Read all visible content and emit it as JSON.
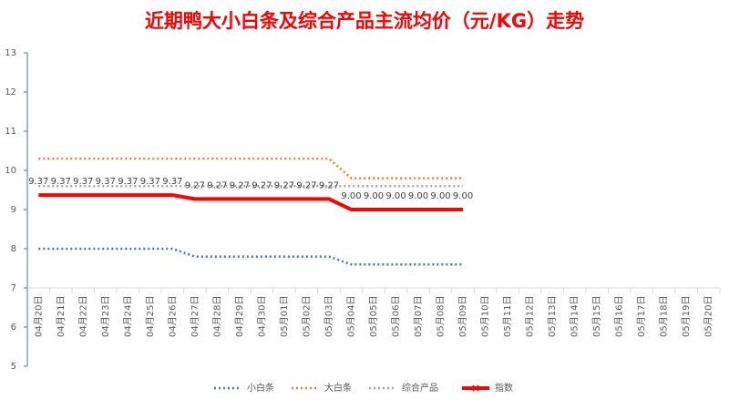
{
  "chart_data": {
    "type": "line",
    "title": "近期鸭大小白条及综合产品主流均价（元/KG）走势",
    "categories": [
      "04月20日",
      "04月21日",
      "04月22日",
      "04月23日",
      "04月24日",
      "04月25日",
      "04月26日",
      "04月27日",
      "04月28日",
      "04月29日",
      "04月30日",
      "05月01日",
      "05月02日",
      "05月03日",
      "05月04日",
      "05月05日",
      "05月06日",
      "05月07日",
      "05月08日",
      "05月09日",
      "05月10日",
      "05月11日",
      "05月12日",
      "05月13日",
      "05月14日",
      "05月15日",
      "05月16日",
      "05月17日",
      "05月18日",
      "05月19日",
      "05月20日"
    ],
    "series": [
      {
        "name": "小白条",
        "color": "#4472c4",
        "style": "dotted",
        "values": [
          8,
          8,
          8,
          8,
          8,
          8,
          8,
          7.8,
          7.8,
          7.8,
          7.8,
          7.8,
          7.8,
          7.8,
          7.6,
          7.6,
          7.6,
          7.6,
          7.6,
          7.6,
          null,
          null,
          null,
          null,
          null,
          null,
          null,
          null,
          null,
          null,
          null
        ]
      },
      {
        "name": "大白条",
        "color": "#ed7d31",
        "style": "dotted",
        "values": [
          10.3,
          10.3,
          10.3,
          10.3,
          10.3,
          10.3,
          10.3,
          10.3,
          10.3,
          10.3,
          10.3,
          10.3,
          10.3,
          10.3,
          9.8,
          9.8,
          9.8,
          9.8,
          9.8,
          9.8,
          null,
          null,
          null,
          null,
          null,
          null,
          null,
          null,
          null,
          null,
          null
        ]
      },
      {
        "name": "综合产品",
        "color": "#a5a5a5",
        "style": "dotted",
        "values": [
          9.6,
          9.6,
          9.6,
          9.6,
          9.6,
          9.6,
          9.6,
          9.6,
          9.6,
          9.6,
          9.6,
          9.6,
          9.6,
          9.6,
          9.6,
          9.6,
          9.6,
          9.6,
          9.6,
          9.6,
          null,
          null,
          null,
          null,
          null,
          null,
          null,
          null,
          null,
          null,
          null
        ]
      },
      {
        "name": "指数",
        "color": "#ff0000",
        "style": "solid",
        "values": [
          9.37,
          9.37,
          9.37,
          9.37,
          9.37,
          9.37,
          9.37,
          9.27,
          9.27,
          9.27,
          9.27,
          9.27,
          9.27,
          9.27,
          9,
          9,
          9,
          9,
          9,
          9,
          null,
          null,
          null,
          null,
          null,
          null,
          null,
          null,
          null,
          null,
          null
        ],
        "value_labels": [
          "9.37",
          "9.37",
          "9.37",
          "9.37",
          "9.37",
          "9.37",
          "9.37",
          "9.27",
          "9.27",
          "9.27",
          "9.27",
          "9.27",
          "9.27",
          "9.27",
          "9.00",
          "9.00",
          "9.00",
          "9.00",
          "9.00",
          "9.00",
          null,
          null,
          null,
          null,
          null,
          null,
          null,
          null,
          null,
          null,
          null
        ]
      }
    ],
    "ylim": [
      5,
      13
    ],
    "yticks": [
      5,
      6,
      7,
      8,
      9,
      10,
      11,
      12,
      13
    ],
    "legend": "bottom"
  }
}
